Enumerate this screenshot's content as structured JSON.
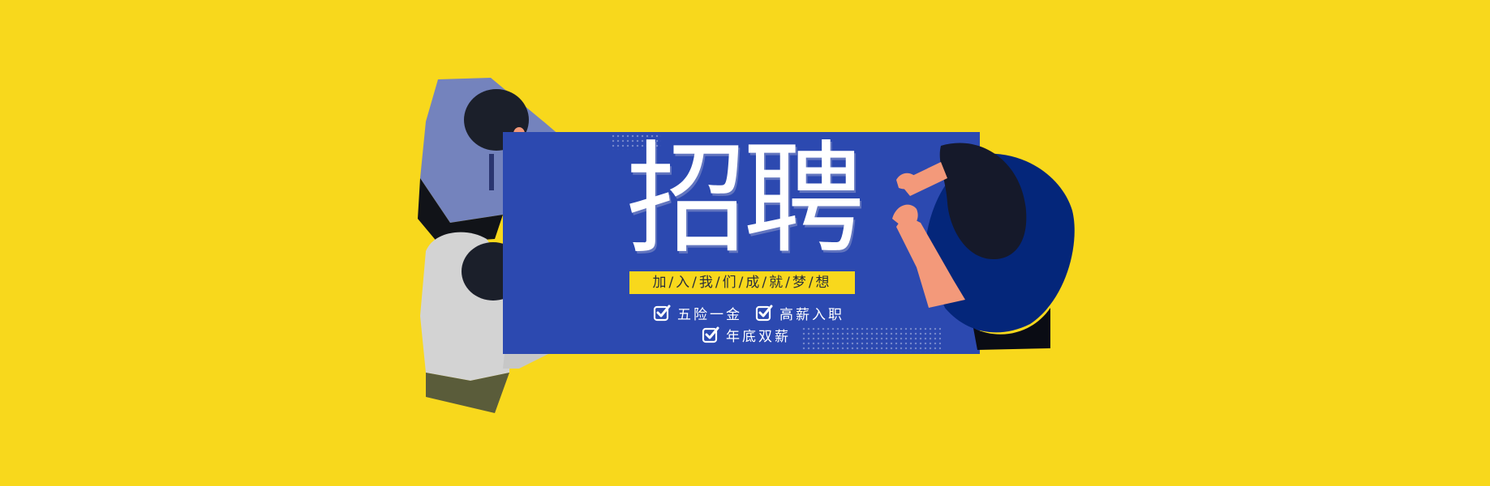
{
  "banner": {
    "headline": "招聘",
    "slogan": "加/入/我/们/成/就/梦/想",
    "benefits": [
      {
        "label": "五险一金",
        "icon": "checkbox-checked-icon"
      },
      {
        "label": "高薪入职",
        "icon": "checkbox-checked-icon"
      },
      {
        "label": "年底双薪",
        "icon": "checkbox-checked-icon"
      }
    ]
  },
  "colors": {
    "background": "#f8d81c",
    "board": "#2c49b0",
    "accent": "#f8d81c",
    "text_on_board": "#ffffff"
  }
}
